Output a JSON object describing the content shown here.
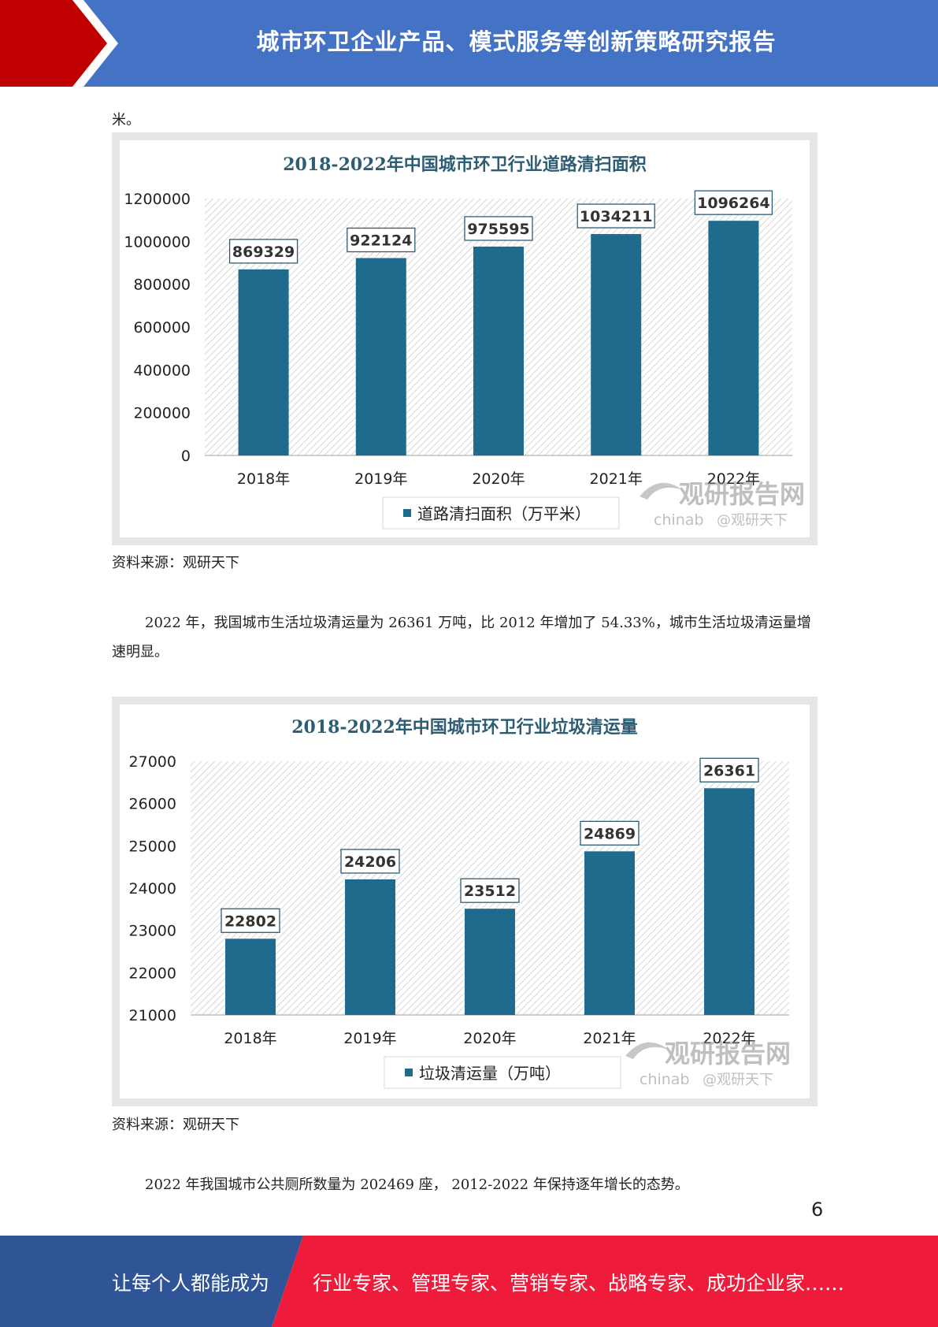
{
  "header": {
    "title": "城市环卫企业产品、模式服务等创新策略研究报告"
  },
  "body": {
    "fragment": "米。",
    "source1": "资料来源：观研天下",
    "para1": "2022 年，我国城市生活垃圾清运量为 26361 万吨，比 2012 年增加了 54.33%，城市生活垃圾清运量增速明显。",
    "source2": "资料来源：观研天下",
    "para2": "2022 年我国城市公共厕所数量为 202469 座， 2012-2022 年保持逐年增长的态势。"
  },
  "watermark": {
    "brand": "观研报告网",
    "domain": "chinab",
    "weibo": "@观研天下"
  },
  "chart_data": [
    {
      "type": "bar",
      "title": "2018-2022年中国城市环卫行业道路清扫面积",
      "categories": [
        "2018年",
        "2019年",
        "2020年",
        "2021年",
        "2022年"
      ],
      "series": [
        {
          "name": "道路清扫面积（万平米）",
          "values": [
            869329,
            922124,
            975595,
            1034211,
            1096264
          ]
        }
      ],
      "ylim": [
        0,
        1200000
      ],
      "yticks": [
        0,
        200000,
        400000,
        600000,
        800000,
        1000000,
        1200000
      ],
      "grid": false,
      "legend": "bottom",
      "bar_color": "#1f6b8e"
    },
    {
      "type": "bar",
      "title": "2018-2022年中国城市环卫行业垃圾清运量",
      "categories": [
        "2018年",
        "2019年",
        "2020年",
        "2021年",
        "2022年"
      ],
      "series": [
        {
          "name": "垃圾清运量（万吨）",
          "values": [
            22802,
            24206,
            23512,
            24869,
            26361
          ]
        }
      ],
      "ylim": [
        21000,
        27000
      ],
      "yticks": [
        21000,
        22000,
        23000,
        24000,
        25000,
        26000,
        27000
      ],
      "grid": false,
      "legend": "bottom",
      "bar_color": "#1f6b8e"
    }
  ],
  "page_number": "6",
  "footer": {
    "left": "让每个人都能成为",
    "right": "行业专家、管理专家、营销专家、战略专家、成功企业家……"
  }
}
